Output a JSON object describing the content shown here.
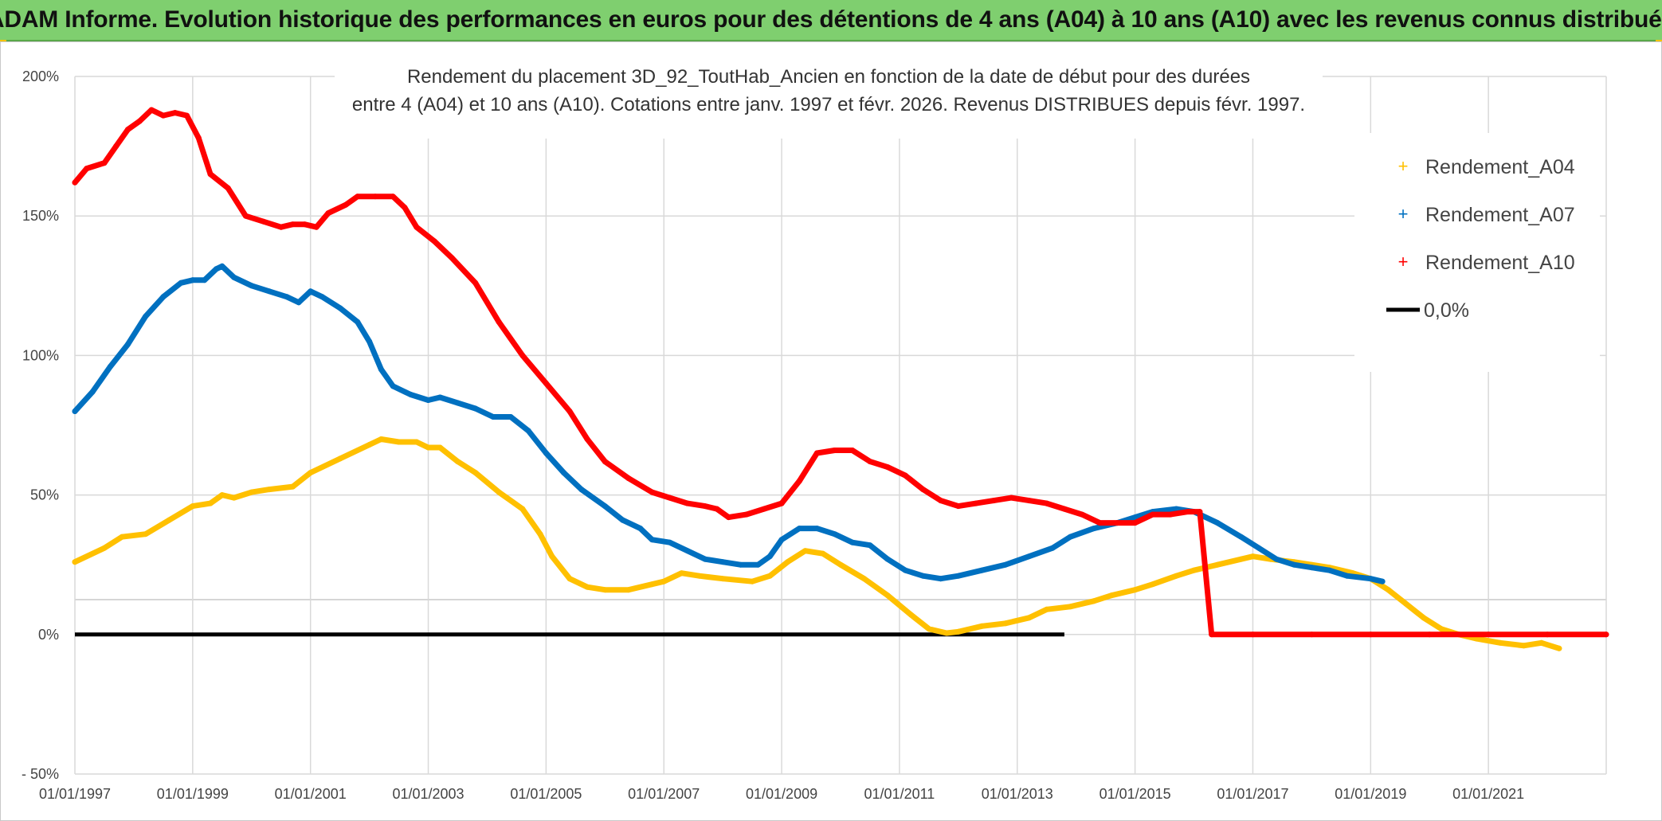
{
  "header": {
    "title": "ADAM Informe. Evolution historique des performances en euros pour des détentions de 4 ans (A04) à 10 ans (A10) avec les revenus connus distribués"
  },
  "chart_data": {
    "type": "line",
    "subtitle_lines": [
      "Rendement du placement 3D_92_ToutHab_Ancien en fonction de la date de début pour des durées",
      "entre 4 (A04) et 10 ans (A10). Cotations entre janv. 1997 et févr. 2026. Revenus DISTRIBUES depuis févr. 1997."
    ],
    "xlim": [
      1997.0,
      2023.0
    ],
    "ylim": [
      -50,
      200
    ],
    "y_ticks": [
      {
        "value": 200,
        "label": "200%"
      },
      {
        "value": 150,
        "label": "150%"
      },
      {
        "value": 100,
        "label": "100%"
      },
      {
        "value": 50,
        "label": "50%"
      },
      {
        "value": 0,
        "label": "0%"
      },
      {
        "value": -50,
        "label": "- 50%"
      }
    ],
    "x_ticks": [
      {
        "value": 1997,
        "label": "01/01/1997"
      },
      {
        "value": 1999,
        "label": "01/01/1999"
      },
      {
        "value": 2001,
        "label": "01/01/2001"
      },
      {
        "value": 2003,
        "label": "01/01/2003"
      },
      {
        "value": 2005,
        "label": "01/01/2005"
      },
      {
        "value": 2007,
        "label": "01/01/2007"
      },
      {
        "value": 2009,
        "label": "01/01/2009"
      },
      {
        "value": 2011,
        "label": "01/01/2011"
      },
      {
        "value": 2013,
        "label": "01/01/2013"
      },
      {
        "value": 2015,
        "label": "01/01/2015"
      },
      {
        "value": 2017,
        "label": "01/01/2017"
      },
      {
        "value": 2019,
        "label": "01/01/2019"
      },
      {
        "value": 2021,
        "label": "01/01/2021"
      }
    ],
    "extra_gridline_y": 12.5,
    "grid": true,
    "legend_position": "top-right",
    "series": [
      {
        "name": "Rendement_A04",
        "color": "#ffc000",
        "points": [
          [
            1997.0,
            26
          ],
          [
            1997.5,
            31
          ],
          [
            1997.8,
            35
          ],
          [
            1998.2,
            36
          ],
          [
            1998.6,
            41
          ],
          [
            1999.0,
            46
          ],
          [
            1999.3,
            47
          ],
          [
            1999.5,
            50
          ],
          [
            1999.7,
            49
          ],
          [
            2000.0,
            51
          ],
          [
            2000.3,
            52
          ],
          [
            2000.7,
            53
          ],
          [
            2001.0,
            58
          ],
          [
            2001.5,
            63
          ],
          [
            2002.0,
            68
          ],
          [
            2002.2,
            70
          ],
          [
            2002.5,
            69
          ],
          [
            2002.8,
            69
          ],
          [
            2003.0,
            67
          ],
          [
            2003.2,
            67
          ],
          [
            2003.5,
            62
          ],
          [
            2003.8,
            58
          ],
          [
            2004.2,
            51
          ],
          [
            2004.6,
            45
          ],
          [
            2004.9,
            36
          ],
          [
            2005.1,
            28
          ],
          [
            2005.4,
            20
          ],
          [
            2005.7,
            17
          ],
          [
            2006.0,
            16
          ],
          [
            2006.4,
            16
          ],
          [
            2006.8,
            18
          ],
          [
            2007.0,
            19
          ],
          [
            2007.3,
            22
          ],
          [
            2007.6,
            21
          ],
          [
            2008.0,
            20
          ],
          [
            2008.5,
            19
          ],
          [
            2008.8,
            21
          ],
          [
            2009.1,
            26
          ],
          [
            2009.4,
            30
          ],
          [
            2009.7,
            29
          ],
          [
            2010.0,
            25
          ],
          [
            2010.4,
            20
          ],
          [
            2010.8,
            14
          ],
          [
            2011.2,
            7
          ],
          [
            2011.5,
            2
          ],
          [
            2011.8,
            0.5
          ],
          [
            2012.0,
            1
          ],
          [
            2012.4,
            3
          ],
          [
            2012.8,
            4
          ],
          [
            2013.2,
            6
          ],
          [
            2013.5,
            9
          ],
          [
            2013.9,
            10
          ],
          [
            2014.3,
            12
          ],
          [
            2014.6,
            14
          ],
          [
            2015.0,
            16
          ],
          [
            2015.3,
            18
          ],
          [
            2015.7,
            21
          ],
          [
            2016.0,
            23
          ],
          [
            2016.4,
            25
          ],
          [
            2016.8,
            27
          ],
          [
            2017.0,
            28
          ],
          [
            2017.3,
            27
          ],
          [
            2017.7,
            26
          ],
          [
            2018.0,
            25
          ],
          [
            2018.3,
            24
          ],
          [
            2018.7,
            22
          ],
          [
            2019.0,
            20
          ],
          [
            2019.3,
            16
          ],
          [
            2019.6,
            11
          ],
          [
            2019.9,
            6
          ],
          [
            2020.2,
            2
          ],
          [
            2020.5,
            0
          ],
          [
            2020.8,
            -1.5
          ],
          [
            2021.2,
            -3
          ],
          [
            2021.6,
            -4
          ],
          [
            2021.9,
            -3
          ],
          [
            2022.2,
            -5
          ]
        ]
      },
      {
        "name": "Rendement_A07",
        "color": "#0070c0",
        "points": [
          [
            1997.0,
            80
          ],
          [
            1997.3,
            87
          ],
          [
            1997.6,
            96
          ],
          [
            1997.9,
            104
          ],
          [
            1998.2,
            114
          ],
          [
            1998.5,
            121
          ],
          [
            1998.8,
            126
          ],
          [
            1999.0,
            127
          ],
          [
            1999.2,
            127
          ],
          [
            1999.4,
            131
          ],
          [
            1999.5,
            132
          ],
          [
            1999.7,
            128
          ],
          [
            2000.0,
            125
          ],
          [
            2000.3,
            123
          ],
          [
            2000.6,
            121
          ],
          [
            2000.8,
            119
          ],
          [
            2001.0,
            123
          ],
          [
            2001.2,
            121
          ],
          [
            2001.5,
            117
          ],
          [
            2001.8,
            112
          ],
          [
            2002.0,
            105
          ],
          [
            2002.2,
            95
          ],
          [
            2002.4,
            89
          ],
          [
            2002.7,
            86
          ],
          [
            2003.0,
            84
          ],
          [
            2003.2,
            85
          ],
          [
            2003.5,
            83
          ],
          [
            2003.8,
            81
          ],
          [
            2004.1,
            78
          ],
          [
            2004.4,
            78
          ],
          [
            2004.7,
            73
          ],
          [
            2005.0,
            65
          ],
          [
            2005.3,
            58
          ],
          [
            2005.6,
            52
          ],
          [
            2006.0,
            46
          ],
          [
            2006.3,
            41
          ],
          [
            2006.6,
            38
          ],
          [
            2006.8,
            34
          ],
          [
            2007.1,
            33
          ],
          [
            2007.4,
            30
          ],
          [
            2007.7,
            27
          ],
          [
            2008.0,
            26
          ],
          [
            2008.3,
            25
          ],
          [
            2008.6,
            25
          ],
          [
            2008.8,
            28
          ],
          [
            2009.0,
            34
          ],
          [
            2009.3,
            38
          ],
          [
            2009.6,
            38
          ],
          [
            2009.9,
            36
          ],
          [
            2010.2,
            33
          ],
          [
            2010.5,
            32
          ],
          [
            2010.8,
            27
          ],
          [
            2011.1,
            23
          ],
          [
            2011.4,
            21
          ],
          [
            2011.7,
            20
          ],
          [
            2012.0,
            21
          ],
          [
            2012.4,
            23
          ],
          [
            2012.8,
            25
          ],
          [
            2013.2,
            28
          ],
          [
            2013.6,
            31
          ],
          [
            2013.9,
            35
          ],
          [
            2014.3,
            38
          ],
          [
            2014.7,
            40
          ],
          [
            2015.0,
            42
          ],
          [
            2015.3,
            44
          ],
          [
            2015.7,
            45
          ],
          [
            2016.0,
            44
          ],
          [
            2016.4,
            40
          ],
          [
            2016.8,
            35
          ],
          [
            2017.1,
            31
          ],
          [
            2017.4,
            27
          ],
          [
            2017.7,
            25
          ],
          [
            2018.0,
            24
          ],
          [
            2018.3,
            23
          ],
          [
            2018.6,
            21
          ],
          [
            2019.0,
            20
          ],
          [
            2019.2,
            19
          ]
        ]
      },
      {
        "name": "Rendement_A10",
        "color": "#ff0000",
        "points": [
          [
            1997.0,
            162
          ],
          [
            1997.2,
            167
          ],
          [
            1997.5,
            169
          ],
          [
            1997.7,
            175
          ],
          [
            1997.9,
            181
          ],
          [
            1998.1,
            184
          ],
          [
            1998.3,
            188
          ],
          [
            1998.5,
            186
          ],
          [
            1998.7,
            187
          ],
          [
            1998.9,
            186
          ],
          [
            1999.1,
            178
          ],
          [
            1999.3,
            165
          ],
          [
            1999.6,
            160
          ],
          [
            1999.9,
            150
          ],
          [
            2000.2,
            148
          ],
          [
            2000.5,
            146
          ],
          [
            2000.7,
            147
          ],
          [
            2000.9,
            147
          ],
          [
            2001.1,
            146
          ],
          [
            2001.3,
            151
          ],
          [
            2001.6,
            154
          ],
          [
            2001.8,
            157
          ],
          [
            2002.1,
            157
          ],
          [
            2002.4,
            157
          ],
          [
            2002.6,
            153
          ],
          [
            2002.8,
            146
          ],
          [
            2003.1,
            141
          ],
          [
            2003.4,
            135
          ],
          [
            2003.8,
            126
          ],
          [
            2004.2,
            112
          ],
          [
            2004.6,
            100
          ],
          [
            2005.0,
            90
          ],
          [
            2005.4,
            80
          ],
          [
            2005.7,
            70
          ],
          [
            2006.0,
            62
          ],
          [
            2006.4,
            56
          ],
          [
            2006.8,
            51
          ],
          [
            2007.1,
            49
          ],
          [
            2007.4,
            47
          ],
          [
            2007.7,
            46
          ],
          [
            2007.9,
            45
          ],
          [
            2008.1,
            42
          ],
          [
            2008.4,
            43
          ],
          [
            2008.7,
            45
          ],
          [
            2009.0,
            47
          ],
          [
            2009.3,
            55
          ],
          [
            2009.6,
            65
          ],
          [
            2009.9,
            66
          ],
          [
            2010.2,
            66
          ],
          [
            2010.5,
            62
          ],
          [
            2010.8,
            60
          ],
          [
            2011.1,
            57
          ],
          [
            2011.4,
            52
          ],
          [
            2011.7,
            48
          ],
          [
            2012.0,
            46
          ],
          [
            2012.3,
            47
          ],
          [
            2012.6,
            48
          ],
          [
            2012.9,
            49
          ],
          [
            2013.2,
            48
          ],
          [
            2013.5,
            47
          ],
          [
            2013.8,
            45
          ],
          [
            2014.1,
            43
          ],
          [
            2014.4,
            40
          ],
          [
            2014.7,
            40
          ],
          [
            2015.0,
            40
          ],
          [
            2015.3,
            43
          ],
          [
            2015.6,
            43
          ],
          [
            2015.9,
            44
          ],
          [
            2016.1,
            44
          ],
          [
            2016.3,
            0
          ],
          [
            2017.0,
            0
          ],
          [
            2018.0,
            0
          ],
          [
            2019.0,
            0
          ],
          [
            2020.0,
            0
          ],
          [
            2021.0,
            0
          ],
          [
            2022.0,
            0
          ],
          [
            2023.0,
            0
          ]
        ]
      },
      {
        "name": "0,0%",
        "color": "#000000",
        "points": [
          [
            1997.0,
            0
          ],
          [
            2013.8,
            0
          ]
        ]
      }
    ]
  }
}
